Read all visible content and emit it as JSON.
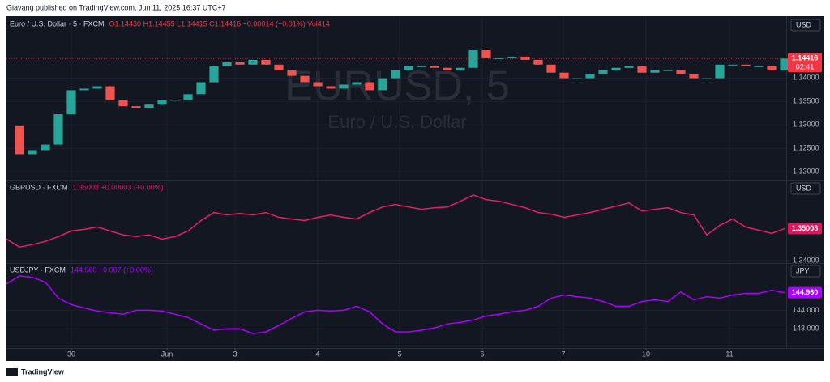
{
  "header": "Giavang published on TradingView.com, Jun 11, 2025 16:37 UTC+7",
  "footer": "TradingView",
  "chart_data": [
    {
      "type": "candlestick",
      "symbol": "Euro / U.S. Dollar · 5 · FXCM",
      "ohlc": "O1.14430 H1.14455 L1.14415 C1.14416 −0.00014 (−0.01%) Vol414",
      "watermark": [
        "EURUSD, 5",
        "Euro / U.S. Dollar"
      ],
      "currency": "USD",
      "last_label": "1.14416",
      "countdown": "02:41",
      "up_color": "#26a69a",
      "down_color": "#ef5350",
      "label_color": "#f23645",
      "xlim": [
        0,
        60
      ],
      "ylim": [
        1.1183,
        1.1525
      ],
      "yticks": [
        {
          "value": 1.12,
          "label": "1.12000"
        },
        {
          "value": 1.125,
          "label": "1.12500"
        },
        {
          "value": 1.13,
          "label": "1.13000"
        },
        {
          "value": 1.135,
          "label": "1.13500"
        },
        {
          "value": 1.14,
          "label": "1.14000"
        }
      ],
      "values": [
        1.12973,
        1.12375,
        1.12461,
        1.1258,
        1.13228,
        1.1374,
        1.13774,
        1.13825,
        1.13535,
        1.13399,
        1.13365,
        1.13433,
        1.13535,
        1.13535,
        1.13655,
        1.13911,
        1.14252,
        1.14337,
        1.14286,
        1.14388,
        1.14286,
        1.14167,
        1.14047,
        1.13911,
        1.13825,
        1.13774,
        1.1386,
        1.13911,
        1.1374,
        1.13996,
        1.14167,
        1.14252,
        1.14252,
        1.14218,
        1.14167,
        1.14218,
        1.14593,
        1.14422,
        1.14422,
        1.14457,
        1.14388,
        1.14286,
        1.14115,
        1.13996,
        1.13996,
        1.14081,
        1.14167,
        1.14218,
        1.14252,
        1.14115,
        1.14167,
        1.14167,
        1.14081,
        1.13996,
        1.13996,
        1.14286,
        1.14286,
        1.14252,
        1.14252,
        1.14167,
        1.14416
      ]
    },
    {
      "type": "line",
      "symbol": "GBPUSD · FXCM",
      "ohlc": "1.35008 +0.00003 (+0.00%)",
      "currency": "USD",
      "last_label": "1.35008",
      "color": "#e91e63",
      "label_color": "#d81b60",
      "xlim": [
        0,
        60
      ],
      "ylim": [
        1.33924,
        1.36444
      ],
      "yticks": [
        {
          "value": 1.34,
          "label": "1.34000"
        }
      ],
      "values": [
        1.3468,
        1.34428,
        1.34504,
        1.34605,
        1.34756,
        1.34932,
        1.34983,
        1.35058,
        1.34932,
        1.34806,
        1.34756,
        1.34806,
        1.3468,
        1.34756,
        1.34932,
        1.3526,
        1.35512,
        1.35436,
        1.35487,
        1.35436,
        1.35512,
        1.35361,
        1.3531,
        1.3526,
        1.35361,
        1.35436,
        1.35361,
        1.3531,
        1.35512,
        1.35688,
        1.35764,
        1.35688,
        1.35613,
        1.35663,
        1.35688,
        1.35865,
        1.36066,
        1.35915,
        1.35865,
        1.35764,
        1.35663,
        1.35512,
        1.35462,
        1.35361,
        1.35436,
        1.35512,
        1.35613,
        1.35714,
        1.35814,
        1.35562,
        1.35613,
        1.35663,
        1.35512,
        1.35436,
        1.34806,
        1.35109,
        1.3531,
        1.35058,
        1.34958,
        1.34857,
        1.35008
      ]
    },
    {
      "type": "line",
      "symbol": "USDJPY · FXCM",
      "ohlc": "144.960 +0.007 (+0.00%)",
      "currency": "JPY",
      "last_label": "144.960",
      "color": "#aa00ff",
      "label_color": "#aa00ff",
      "xlim": [
        0,
        60
      ],
      "ylim": [
        142.043,
        146.435
      ],
      "yticks": [
        {
          "value": 143,
          "label": "143.000"
        },
        {
          "value": 144,
          "label": "144.000"
        }
      ],
      "xticks": [
        {
          "value": 5,
          "label": "30"
        },
        {
          "value": 12.375,
          "label": "Jun"
        },
        {
          "value": 17.625,
          "label": "3"
        },
        {
          "value": 24,
          "label": "4"
        },
        {
          "value": 30.3125,
          "label": "5"
        },
        {
          "value": 36.6875,
          "label": "6"
        },
        {
          "value": 42.9375,
          "label": "7"
        },
        {
          "value": 49.3125,
          "label": "10"
        },
        {
          "value": 55.75,
          "label": "11"
        }
      ],
      "values": [
        145.44,
        145.87,
        145.79,
        145.53,
        144.66,
        144.31,
        144.13,
        143.96,
        143.87,
        143.79,
        144.0,
        144.0,
        143.96,
        143.79,
        143.61,
        143.26,
        142.92,
        143.0,
        143.0,
        142.74,
        142.83,
        143.18,
        143.57,
        143.92,
        144.0,
        143.96,
        144.0,
        144.22,
        143.92,
        143.26,
        142.83,
        142.83,
        142.92,
        143.05,
        143.26,
        143.35,
        143.48,
        143.7,
        143.79,
        143.92,
        144.0,
        144.22,
        144.66,
        144.83,
        144.74,
        144.66,
        144.48,
        144.22,
        144.22,
        144.48,
        144.57,
        144.48,
        145.0,
        144.57,
        144.74,
        144.66,
        144.83,
        144.92,
        144.92,
        145.09,
        144.96
      ]
    }
  ]
}
